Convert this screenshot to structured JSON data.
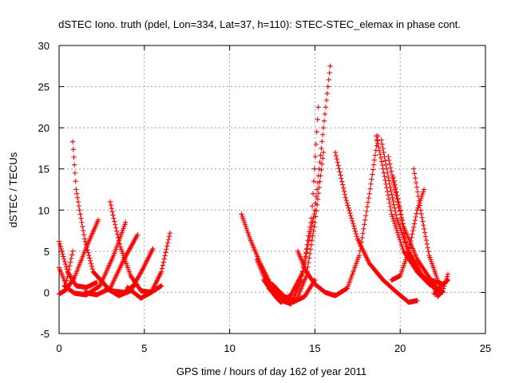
{
  "chart_data": {
    "type": "scatter",
    "title": "dSTEC Iono. truth (pdel, Lon=334, Lat=37, h=110): STEC-STEC_elemax in phase cont.",
    "xlabel": "GPS time / hours of day 162 of year 2011",
    "ylabel": "dSTEC  / TECUs",
    "xlim": [
      0,
      25
    ],
    "ylim": [
      -5,
      30
    ],
    "x_ticks": [
      0,
      5,
      10,
      15,
      20,
      25
    ],
    "y_ticks": [
      -5,
      0,
      5,
      10,
      15,
      20,
      25,
      30
    ],
    "grid": true,
    "marker": "+",
    "color": "#ff0000",
    "arcs": [
      {
        "x": [
          0.0,
          0.5,
          1.0,
          1.6,
          2.2
        ],
        "y": [
          6.2,
          2.5,
          0.8,
          0.6,
          1.2
        ]
      },
      {
        "x": [
          0.0,
          0.4,
          0.8
        ],
        "y": [
          3.0,
          1.0,
          5.0
        ]
      },
      {
        "x": [
          0.0,
          0.4,
          0.9,
          1.6,
          2.3
        ],
        "y": [
          -0.2,
          0.3,
          1.8,
          5.5,
          8.8
        ]
      },
      {
        "x": [
          0.8,
          0.9,
          1.0,
          1.2,
          1.5,
          2.0,
          3.0,
          3.8,
          4.5
        ],
        "y": [
          18.3,
          15.5,
          12.5,
          10.0,
          6.5,
          2.5,
          0.2,
          0.0,
          1.0
        ]
      },
      {
        "x": [
          0.3,
          0.9,
          1.6,
          2.4,
          3.2,
          3.9
        ],
        "y": [
          0.8,
          -0.1,
          -0.3,
          0.8,
          4.5,
          8.5
        ]
      },
      {
        "x": [
          1.5,
          2.2,
          3.0,
          3.8,
          4.6
        ],
        "y": [
          0.0,
          -0.3,
          0.5,
          4.0,
          7.0
        ]
      },
      {
        "x": [
          3.0,
          3.2,
          3.6,
          4.2,
          4.8,
          5.4,
          6.0
        ],
        "y": [
          11.0,
          9.0,
          5.5,
          2.0,
          0.2,
          0.0,
          0.8
        ]
      },
      {
        "x": [
          2.8,
          3.5,
          4.2,
          4.9,
          5.5
        ],
        "y": [
          0.5,
          -0.4,
          0.2,
          2.8,
          5.3
        ]
      },
      {
        "x": [
          4.0,
          4.8,
          5.4,
          6.0,
          6.5
        ],
        "y": [
          0.6,
          -0.7,
          0.0,
          2.5,
          7.2
        ]
      },
      {
        "x": [
          10.7,
          11.2,
          11.8,
          12.4,
          13.0,
          13.7,
          14.4,
          15.0
        ],
        "y": [
          9.5,
          6.5,
          3.5,
          1.0,
          -0.6,
          -1.2,
          -0.5,
          1.5
        ]
      },
      {
        "x": [
          11.6,
          12.3,
          13.0,
          13.6,
          14.3,
          15.0,
          15.5,
          15.9
        ],
        "y": [
          4.0,
          0.5,
          -1.2,
          -0.3,
          2.5,
          10.0,
          20.0,
          27.5
        ]
      },
      {
        "x": [
          12.0,
          12.8,
          13.6,
          14.2,
          14.8,
          15.2
        ],
        "y": [
          1.5,
          -0.8,
          -1.4,
          1.5,
          9.0,
          22.5
        ]
      },
      {
        "x": [
          12.5,
          13.2,
          13.9,
          14.5,
          15.0,
          15.5
        ],
        "y": [
          1.0,
          -0.5,
          -1.0,
          2.0,
          8.5,
          17.0
        ]
      },
      {
        "x": [
          14.0,
          14.5,
          15.0,
          15.6,
          16.2,
          16.9,
          17.6,
          18.2,
          18.7
        ],
        "y": [
          5.0,
          2.5,
          1.0,
          0.0,
          -0.4,
          0.5,
          4.5,
          12.0,
          19.0
        ]
      },
      {
        "x": [
          16.2,
          16.8,
          17.5,
          18.2,
          19.0,
          19.8,
          20.5,
          21.0
        ],
        "y": [
          17.0,
          11.5,
          6.5,
          3.5,
          1.5,
          0.0,
          -1.2,
          -1.0
        ]
      },
      {
        "x": [
          18.6,
          19.0,
          19.5,
          20.2,
          21.0,
          21.7,
          22.4
        ],
        "y": [
          19.0,
          15.0,
          9.5,
          5.0,
          2.5,
          1.0,
          0.2
        ]
      },
      {
        "x": [
          18.9,
          19.3,
          19.8,
          20.5,
          21.3,
          22.0,
          22.5
        ],
        "y": [
          18.5,
          14.0,
          9.0,
          5.0,
          2.0,
          0.6,
          0.0
        ]
      },
      {
        "x": [
          19.3,
          19.7,
          20.2,
          21.0,
          21.8,
          22.5
        ],
        "y": [
          16.5,
          12.5,
          8.0,
          4.0,
          1.5,
          1.0
        ]
      },
      {
        "x": [
          19.6,
          20.0,
          20.4,
          21.0,
          21.6,
          22.2
        ],
        "y": [
          14.0,
          10.0,
          5.0,
          2.5,
          1.5,
          0.5
        ]
      },
      {
        "x": [
          19.5,
          20.0,
          20.5,
          21.0,
          21.4
        ],
        "y": [
          1.5,
          2.0,
          5.0,
          10.0,
          12.5
        ]
      },
      {
        "x": [
          20.8,
          21.2,
          21.7,
          22.2
        ],
        "y": [
          15.0,
          10.0,
          4.5,
          1.5
        ]
      },
      {
        "x": [
          21.8,
          22.2,
          22.5,
          22.8
        ],
        "y": [
          1.5,
          -0.5,
          0.2,
          2.2
        ]
      },
      {
        "x": [
          22.0,
          22.4,
          22.8
        ],
        "y": [
          -0.2,
          0.8,
          1.5
        ]
      }
    ]
  }
}
